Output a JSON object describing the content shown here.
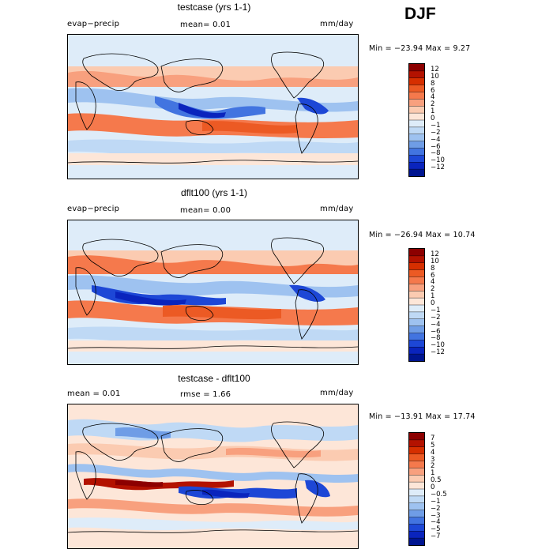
{
  "season": "DJF",
  "panels": [
    {
      "title": "testcase (yrs 1-1)",
      "left_label": "evap−precip",
      "center_label": "mean=   0.01",
      "right_label": "mm/day",
      "minmax": "Min = −23.94  Max =   9.27",
      "colorbar_levels": [
        "12",
        "10",
        "8",
        "6",
        "4",
        "2",
        "1",
        "0",
        "−1",
        "−2",
        "−4",
        "−6",
        "−8",
        "−10",
        "−12"
      ]
    },
    {
      "title": "dflt100 (yrs 1-1)",
      "left_label": "evap−precip",
      "center_label": "mean=   0.00",
      "right_label": "mm/day",
      "minmax": "Min = −26.94  Max =  10.74",
      "colorbar_levels": [
        "12",
        "10",
        "8",
        "6",
        "4",
        "2",
        "1",
        "0",
        "−1",
        "−2",
        "−4",
        "−6",
        "−8",
        "−10",
        "−12"
      ]
    },
    {
      "title": "testcase - dflt100",
      "left_label": "mean =    0.01",
      "center_label": "rmse =   1.66",
      "right_label": "mm/day",
      "minmax": "Min = −13.91  Max =  17.74",
      "colorbar_levels": [
        "7",
        "5",
        "4",
        "3",
        "2",
        "1",
        "0.5",
        "0",
        "−0.5",
        "−1",
        "−2",
        "−3",
        "−4",
        "−5",
        "−7"
      ]
    }
  ],
  "colors": {
    "bands": [
      "#8c0000",
      "#b31200",
      "#d62f00",
      "#ec5a24",
      "#f5794c",
      "#f8a07e",
      "#fbcbb1",
      "#fde6d8",
      "#deecf9",
      "#bfd9f5",
      "#9ec2f0",
      "#6f9de6",
      "#4274e0",
      "#1d47d6",
      "#0a24bd",
      "#001590"
    ]
  },
  "chart_data": [
    {
      "type": "heatmap",
      "title": "testcase (yrs 1-1)",
      "variable": "evap−precip",
      "units": "mm/day",
      "mean": 0.01,
      "min": -23.94,
      "max": 9.27,
      "contour_levels": [
        -12,
        -10,
        -8,
        -6,
        -4,
        -2,
        -1,
        0,
        1,
        2,
        4,
        6,
        8,
        10,
        12
      ]
    },
    {
      "type": "heatmap",
      "title": "dflt100 (yrs 1-1)",
      "variable": "evap−precip",
      "units": "mm/day",
      "mean": 0.0,
      "min": -26.94,
      "max": 10.74,
      "contour_levels": [
        -12,
        -10,
        -8,
        -6,
        -4,
        -2,
        -1,
        0,
        1,
        2,
        4,
        6,
        8,
        10,
        12
      ]
    },
    {
      "type": "heatmap",
      "title": "testcase - dflt100",
      "units": "mm/day",
      "mean": 0.01,
      "rmse": 1.66,
      "min": -13.91,
      "max": 17.74,
      "contour_levels": [
        -7,
        -5,
        -4,
        -3,
        -2,
        -1,
        -0.5,
        0,
        0.5,
        1,
        2,
        3,
        4,
        5,
        7
      ]
    }
  ]
}
